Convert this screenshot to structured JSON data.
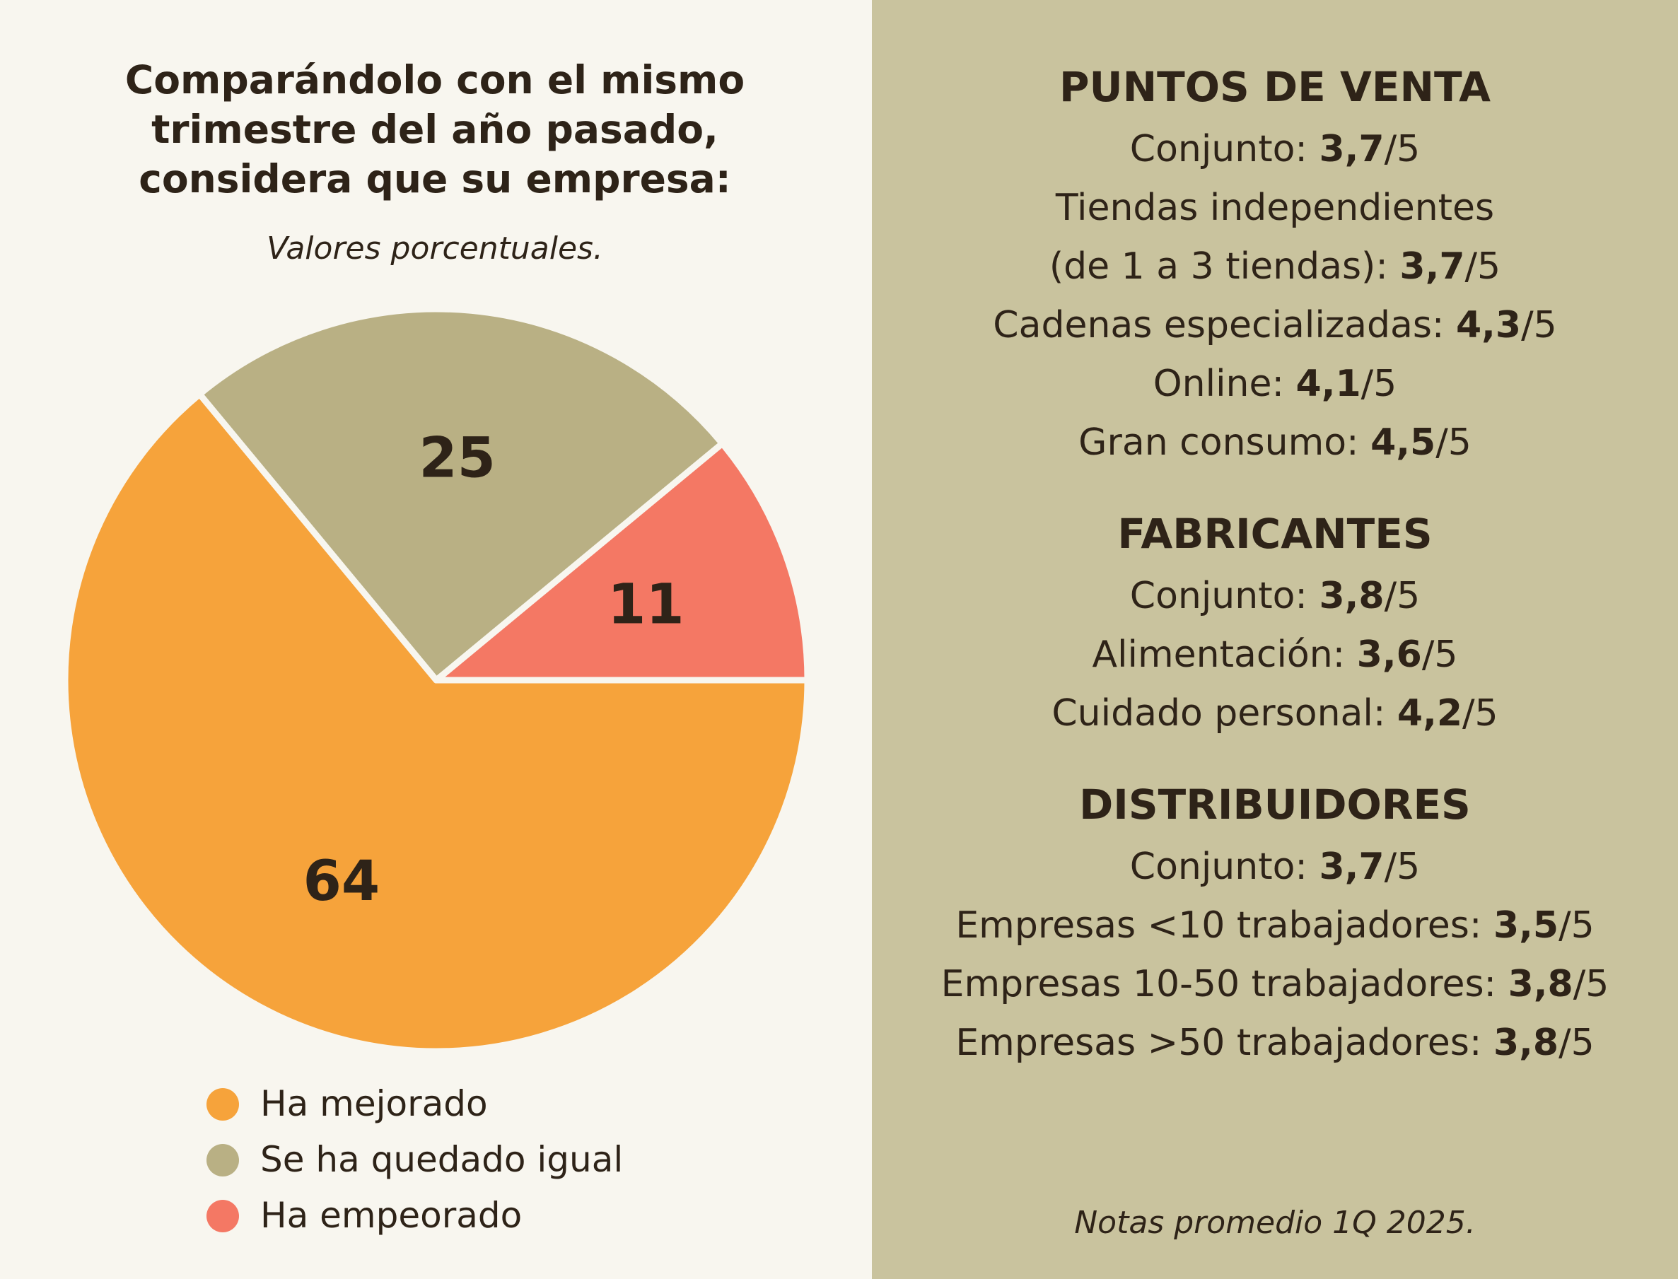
{
  "chart_data": {
    "type": "pie",
    "title": "Comparándolo con el mismo\ntrimestre del año pasado,\nconsidera que su empresa:",
    "subtitle": "Valores porcentuales.",
    "slices": [
      {
        "label": "Ha mejorado",
        "value": 64,
        "color": "#f6a33b"
      },
      {
        "label": "Se ha quedado igual",
        "value": 25,
        "color": "#b9b084"
      },
      {
        "label": "Ha empeorado",
        "value": 11,
        "color": "#f47864"
      }
    ],
    "legend_position": "bottom"
  },
  "colors": {
    "left_background": "#f8f6ef",
    "right_background": "#c9c39e",
    "text": "#2e2318",
    "slice_border": "#f8f6ef"
  },
  "sections": [
    {
      "title": "PUNTOS DE VENTA",
      "items": [
        {
          "label": "Conjunto: ",
          "score": "3,7",
          "suffix": "/5"
        },
        {
          "label": "Tiendas independientes\n(de 1 a 3 tiendas): ",
          "score": "3,7",
          "suffix": "/5"
        },
        {
          "label": "Cadenas especializadas: ",
          "score": "4,3",
          "suffix": "/5"
        },
        {
          "label": "Online: ",
          "score": "4,1",
          "suffix": "/5"
        },
        {
          "label": "Gran consumo: ",
          "score": "4,5",
          "suffix": "/5"
        }
      ]
    },
    {
      "title": "FABRICANTES",
      "items": [
        {
          "label": "Conjunto: ",
          "score": "3,8",
          "suffix": "/5"
        },
        {
          "label": "Alimentación: ",
          "score": "3,6",
          "suffix": "/5"
        },
        {
          "label": "Cuidado personal: ",
          "score": "4,2",
          "suffix": "/5"
        }
      ]
    },
    {
      "title": "DISTRIBUIDORES",
      "items": [
        {
          "label": "Conjunto: ",
          "score": "3,7",
          "suffix": "/5"
        },
        {
          "label": "Empresas <10 trabajadores: ",
          "score": "3,5",
          "suffix": "/5"
        },
        {
          "label": "Empresas 10-50 trabajadores: ",
          "score": "3,8",
          "suffix": "/5"
        },
        {
          "label": "Empresas >50 trabajadores: ",
          "score": "3,8",
          "suffix": "/5"
        }
      ]
    }
  ],
  "footnote": "Notas promedio 1Q 2025."
}
